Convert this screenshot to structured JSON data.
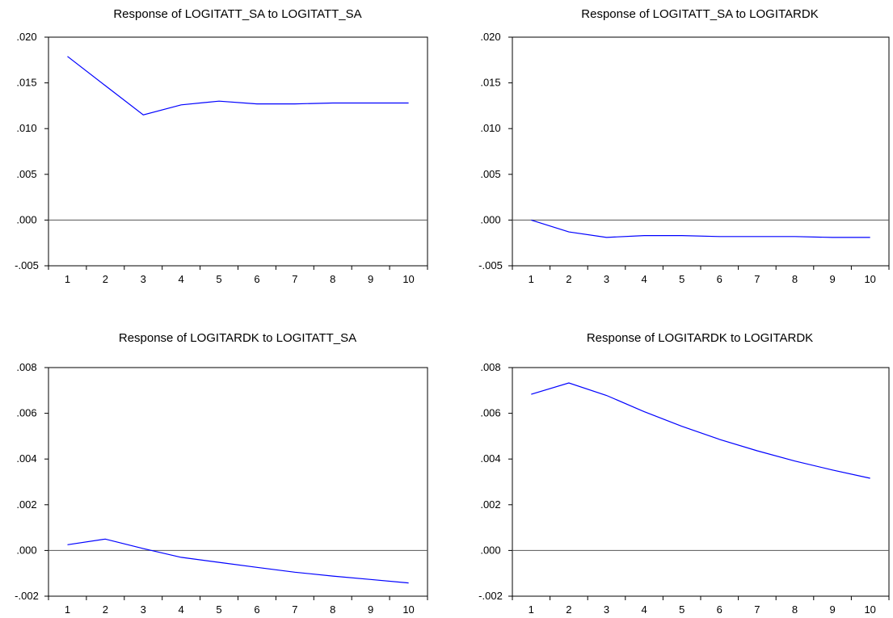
{
  "chart_data": [
    {
      "type": "line",
      "title": "Response of LOGITATT_SA to LOGITATT_SA",
      "x": [
        1,
        2,
        3,
        4,
        5,
        6,
        7,
        8,
        9,
        10
      ],
      "y": [
        0.0179,
        0.0147,
        0.0115,
        0.0126,
        0.013,
        0.0127,
        0.0127,
        0.0128,
        0.0128,
        0.0128
      ],
      "ylim": [
        -0.005,
        0.02
      ],
      "yticks": [
        0.02,
        0.015,
        0.01,
        0.005,
        0.0,
        -0.005
      ],
      "ytick_labels": [
        ".020",
        ".015",
        ".010",
        ".005",
        ".000",
        "-.005"
      ],
      "xtick_labels": [
        "1",
        "2",
        "3",
        "4",
        "5",
        "6",
        "7",
        "8",
        "9",
        "10"
      ],
      "series_color": "#0000ff",
      "zero_line": true,
      "grid": false
    },
    {
      "type": "line",
      "title": "Response of LOGITATT_SA to LOGITARDK",
      "x": [
        1,
        2,
        3,
        4,
        5,
        6,
        7,
        8,
        9,
        10
      ],
      "y": [
        0.0,
        -0.0013,
        -0.0019,
        -0.0017,
        -0.0017,
        -0.0018,
        -0.0018,
        -0.0018,
        -0.0019,
        -0.0019
      ],
      "ylim": [
        -0.005,
        0.02
      ],
      "yticks": [
        0.02,
        0.015,
        0.01,
        0.005,
        0.0,
        -0.005
      ],
      "ytick_labels": [
        ".020",
        ".015",
        ".010",
        ".005",
        ".000",
        "-.005"
      ],
      "xtick_labels": [
        "1",
        "2",
        "3",
        "4",
        "5",
        "6",
        "7",
        "8",
        "9",
        "10"
      ],
      "series_color": "#0000ff",
      "zero_line": true,
      "grid": false
    },
    {
      "type": "line",
      "title": "Response of LOGITARDK to LOGITATT_SA",
      "x": [
        1,
        2,
        3,
        4,
        5,
        6,
        7,
        8,
        9,
        10
      ],
      "y": [
        0.00025,
        0.0005,
        8e-05,
        -0.0003,
        -0.00052,
        -0.00074,
        -0.00095,
        -0.00112,
        -0.00127,
        -0.00142
      ],
      "ylim": [
        -0.002,
        0.008
      ],
      "yticks": [
        0.008,
        0.006,
        0.004,
        0.002,
        0.0,
        -0.002
      ],
      "ytick_labels": [
        ".008",
        ".006",
        ".004",
        ".002",
        ".000",
        "-.002"
      ],
      "xtick_labels": [
        "1",
        "2",
        "3",
        "4",
        "5",
        "6",
        "7",
        "8",
        "9",
        "10"
      ],
      "series_color": "#0000ff",
      "zero_line": true,
      "grid": false
    },
    {
      "type": "line",
      "title": "Response of LOGITARDK to LOGITARDK",
      "x": [
        1,
        2,
        3,
        4,
        5,
        6,
        7,
        8,
        9,
        10
      ],
      "y": [
        0.00683,
        0.00733,
        0.00678,
        0.00607,
        0.00543,
        0.00486,
        0.00436,
        0.00391,
        0.00352,
        0.00316
      ],
      "ylim": [
        -0.002,
        0.008
      ],
      "yticks": [
        0.008,
        0.006,
        0.004,
        0.002,
        0.0,
        -0.002
      ],
      "ytick_labels": [
        ".008",
        ".006",
        ".004",
        ".002",
        ".000",
        "-.002"
      ],
      "xtick_labels": [
        "1",
        "2",
        "3",
        "4",
        "5",
        "6",
        "7",
        "8",
        "9",
        "10"
      ],
      "series_color": "#0000ff",
      "zero_line": true,
      "grid": false
    }
  ]
}
